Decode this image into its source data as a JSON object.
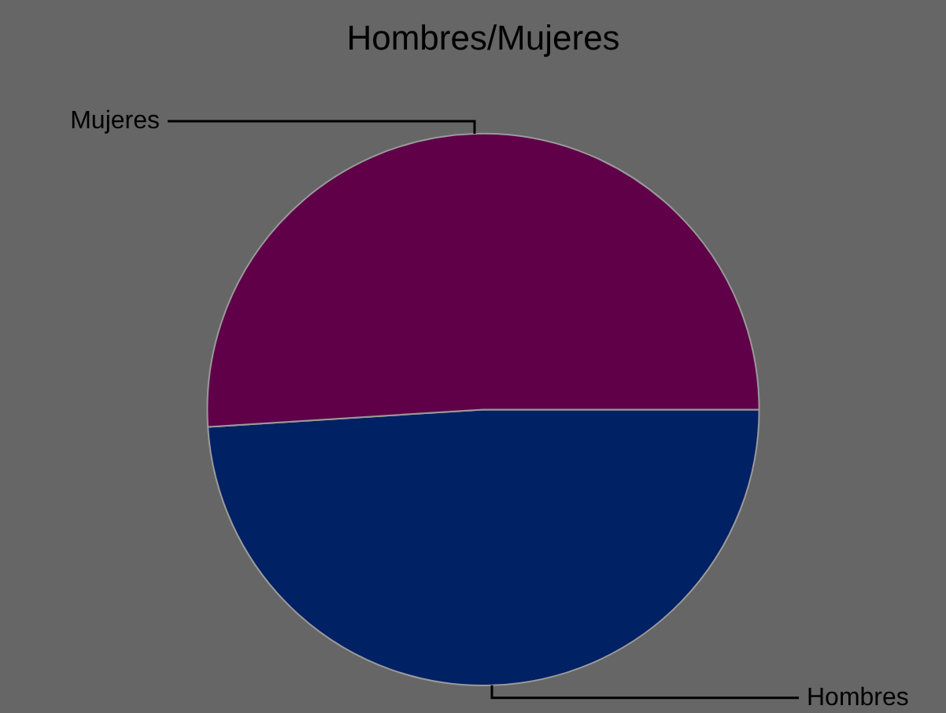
{
  "chart_data": {
    "type": "pie",
    "title": "Hombres/Mujeres",
    "categories": [
      "Hombres",
      "Mujeres"
    ],
    "values": [
      49,
      51
    ],
    "colors": [
      "#002163",
      "#5f0048"
    ]
  }
}
